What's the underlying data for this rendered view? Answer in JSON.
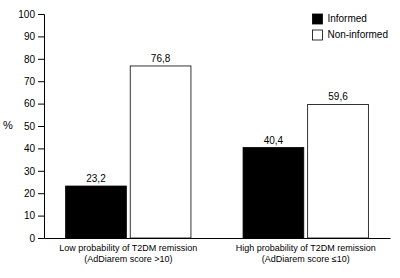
{
  "chart_data": {
    "type": "bar",
    "categories": [
      "Low probability of T2DM remission\n(AdDiarem score >10)",
      "High probability of T2DM remission\n(AdDiarem score ≤10)"
    ],
    "series": [
      {
        "name": "Informed",
        "color": "#000000",
        "values": [
          23.2,
          40.4
        ],
        "value_labels": [
          "23,2",
          "40,4"
        ]
      },
      {
        "name": "Non-informed",
        "color": "#ffffff",
        "values": [
          76.8,
          59.6
        ],
        "value_labels": [
          "76,8",
          "59,6"
        ]
      }
    ],
    "ylabel": "%",
    "ylim": [
      0,
      100
    ],
    "yticks": [
      0,
      10,
      20,
      30,
      40,
      50,
      60,
      70,
      80,
      90,
      100
    ],
    "grid": false,
    "legend": "upper right",
    "data_labels": true
  }
}
